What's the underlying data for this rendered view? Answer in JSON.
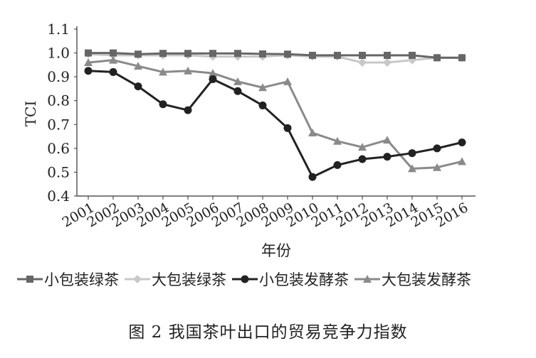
{
  "chart_data": {
    "type": "line",
    "title": "",
    "caption": "图 2  我国茶叶出口的贸易竞争力指数",
    "xlabel": "年份",
    "ylabel": "TCI",
    "ylim": [
      0.4,
      1.1
    ],
    "yticks": [
      "0.4",
      "0.5",
      "0.6",
      "0.7",
      "0.8",
      "0.9",
      "1.0",
      "1.1"
    ],
    "grid": false,
    "legend_position": "bottom",
    "categories": [
      "2001",
      "2002",
      "2003",
      "2004",
      "2005",
      "2006",
      "2007",
      "2008",
      "2009",
      "2010",
      "2011",
      "2012",
      "2013",
      "2014",
      "2015",
      "2016"
    ],
    "series": [
      {
        "name": "小包装绿茶",
        "color": "#666666",
        "marker": "square",
        "values": [
          1.0,
          1.0,
          0.995,
          0.998,
          0.998,
          0.998,
          0.998,
          0.996,
          0.995,
          0.99,
          0.99,
          0.99,
          0.99,
          0.99,
          0.98,
          0.98
        ]
      },
      {
        "name": "大包装绿茶",
        "color": "#c8c8c8",
        "marker": "diamond",
        "values": [
          0.995,
          0.99,
          0.99,
          0.99,
          0.99,
          0.985,
          0.985,
          0.985,
          0.99,
          0.985,
          0.985,
          0.96,
          0.96,
          0.97,
          0.98,
          0.98
        ]
      },
      {
        "name": "小包装发酵茶",
        "color": "#222222",
        "marker": "circle",
        "values": [
          0.925,
          0.92,
          0.86,
          0.785,
          0.76,
          0.89,
          0.84,
          0.78,
          0.685,
          0.48,
          0.53,
          0.555,
          0.565,
          0.58,
          0.6,
          0.625
        ]
      },
      {
        "name": "大包装发酵茶",
        "color": "#8a8a8a",
        "marker": "triangle",
        "values": [
          0.96,
          0.97,
          0.945,
          0.92,
          0.925,
          0.915,
          0.88,
          0.855,
          0.88,
          0.665,
          0.63,
          0.605,
          0.635,
          0.515,
          0.52,
          0.545
        ]
      }
    ]
  }
}
